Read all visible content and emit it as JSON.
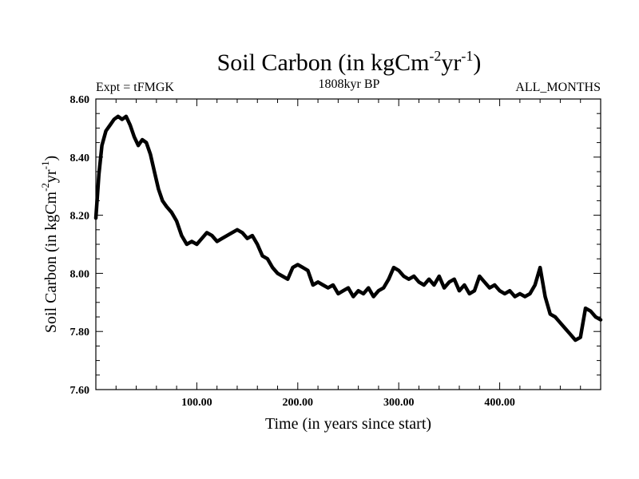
{
  "chart_data": {
    "type": "line",
    "title": {
      "main": "Soil Carbon (in kgCm",
      "exp1": "-2",
      "mid": "yr",
      "exp2": "-1",
      "close": ")"
    },
    "subtitle_left": "Expt = tFMGK",
    "subtitle_center": "1808kyr BP",
    "subtitle_right": "ALL_MONTHS",
    "xlabel": "Time (in years since start)",
    "ylabel": {
      "main": "Soil Carbon (in kgCm",
      "exp1": "-2",
      "mid": "yr",
      "exp2": "-1",
      "close": ")"
    },
    "xlim": [
      0,
      500
    ],
    "ylim": [
      7.6,
      8.6
    ],
    "xticks": [
      100,
      200,
      300,
      400
    ],
    "xtick_labels": [
      "100.00",
      "200.00",
      "300.00",
      "400.00"
    ],
    "yticks": [
      7.6,
      7.8,
      8.0,
      8.2,
      8.4,
      8.6
    ],
    "ytick_labels": [
      "7.60",
      "7.80",
      "8.00",
      "8.20",
      "8.40",
      "8.60"
    ],
    "series": [
      {
        "name": "Soil Carbon",
        "x": [
          0,
          3,
          6,
          10,
          14,
          18,
          22,
          26,
          30,
          34,
          38,
          42,
          46,
          50,
          54,
          58,
          62,
          66,
          70,
          75,
          80,
          85,
          90,
          95,
          100,
          105,
          110,
          115,
          120,
          125,
          130,
          135,
          140,
          145,
          150,
          155,
          160,
          165,
          170,
          175,
          180,
          185,
          190,
          195,
          200,
          205,
          210,
          215,
          220,
          225,
          230,
          235,
          240,
          245,
          250,
          255,
          260,
          265,
          270,
          275,
          280,
          285,
          290,
          295,
          300,
          305,
          310,
          315,
          320,
          325,
          330,
          335,
          340,
          345,
          350,
          355,
          360,
          365,
          370,
          375,
          380,
          385,
          390,
          395,
          400,
          405,
          410,
          415,
          420,
          425,
          430,
          435,
          440,
          445,
          450,
          455,
          460,
          465,
          470,
          475,
          480,
          485,
          490,
          495,
          500
        ],
        "y": [
          8.19,
          8.34,
          8.44,
          8.49,
          8.51,
          8.53,
          8.54,
          8.53,
          8.54,
          8.51,
          8.47,
          8.44,
          8.46,
          8.45,
          8.41,
          8.35,
          8.29,
          8.25,
          8.23,
          8.21,
          8.18,
          8.13,
          8.1,
          8.11,
          8.1,
          8.12,
          8.14,
          8.13,
          8.11,
          8.12,
          8.13,
          8.14,
          8.15,
          8.14,
          8.12,
          8.13,
          8.1,
          8.06,
          8.05,
          8.02,
          8.0,
          7.99,
          7.98,
          8.02,
          8.03,
          8.02,
          8.01,
          7.96,
          7.97,
          7.96,
          7.95,
          7.96,
          7.93,
          7.94,
          7.95,
          7.92,
          7.94,
          7.93,
          7.95,
          7.92,
          7.94,
          7.95,
          7.98,
          8.02,
          8.01,
          7.99,
          7.98,
          7.99,
          7.97,
          7.96,
          7.98,
          7.96,
          7.99,
          7.95,
          7.97,
          7.98,
          7.94,
          7.96,
          7.93,
          7.94,
          7.99,
          7.97,
          7.95,
          7.96,
          7.94,
          7.93,
          7.94,
          7.92,
          7.93,
          7.92,
          7.93,
          7.96,
          8.02,
          7.92,
          7.86,
          7.85,
          7.83,
          7.81,
          7.79,
          7.77,
          7.78,
          7.88,
          7.87,
          7.85,
          7.84
        ]
      }
    ]
  }
}
